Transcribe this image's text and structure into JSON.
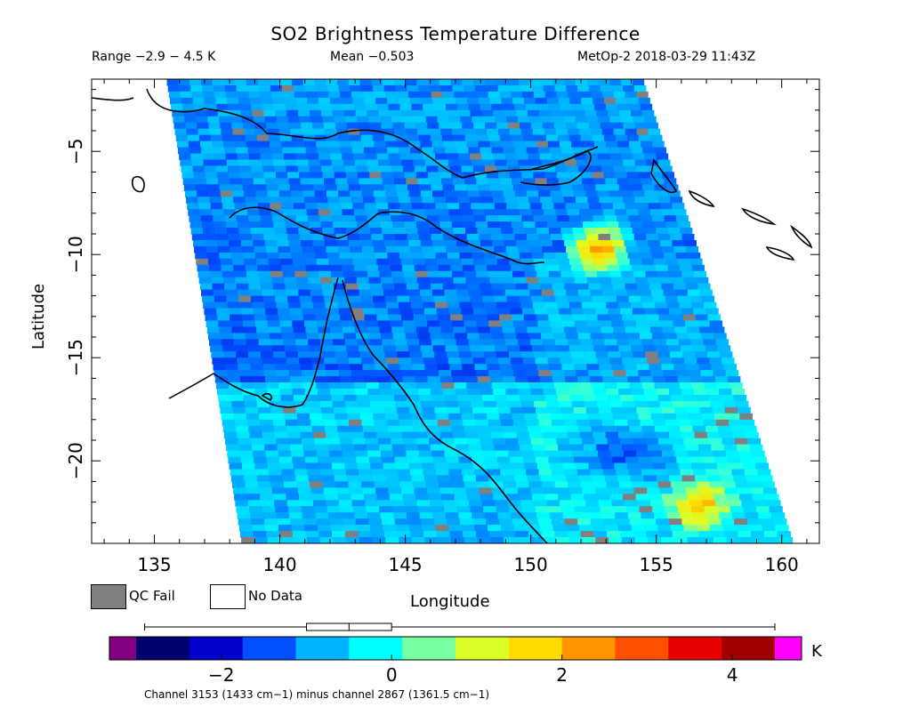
{
  "header": {
    "title": "SO2 Brightness Temperature Difference",
    "range_text": "Range −2.9 − 4.5 K",
    "mean_text": "Mean −0.503",
    "satellite_text": "MetOp-2 2018-03-29 11:43Z"
  },
  "legend": {
    "qc_fail_label": "QC Fail",
    "no_data_label": "No Data",
    "qc_fail_color": "#808080",
    "no_data_color": "#ffffff"
  },
  "colorbar": {
    "unit": "K",
    "ticks": [
      -2,
      0,
      2,
      4
    ],
    "tick_labels": [
      "−2",
      "0",
      "2",
      "4"
    ],
    "range": [
      -3,
      4.5
    ],
    "colors": [
      "#00006e",
      "#0000c8",
      "#0050ff",
      "#00b4ff",
      "#00ffff",
      "#78ffa0",
      "#dcff28",
      "#ffdc00",
      "#ff9600",
      "#ff5000",
      "#e60000",
      "#a00000"
    ],
    "under_color": "#800080",
    "over_color": "#ff00ff",
    "boxplot": {
      "min": -2.9,
      "q1": -1.0,
      "median": -0.5,
      "q3": 0.0,
      "max": 4.5
    }
  },
  "footnote": "Channel 3153 (1433 cm−1) minus channel 2867 (1361.5 cm−1)",
  "chart_data": {
    "type": "heatmap",
    "title": "SO2 Brightness Temperature Difference",
    "xlabel": "Longitude",
    "ylabel": "Latitude",
    "xlim": [
      132.5,
      161.5
    ],
    "ylim": [
      -24,
      -1.5
    ],
    "x_ticks": [
      135,
      140,
      145,
      150,
      155,
      160
    ],
    "y_ticks": [
      -5,
      -10,
      -15,
      -20
    ],
    "units": "K",
    "value_range": [
      -2.9,
      4.5
    ],
    "mean": -0.503,
    "hotspots": [
      {
        "lon": 152.5,
        "lat": -9.5,
        "value": 3.5
      },
      {
        "lon": 156.5,
        "lat": -22,
        "value": 2.2
      }
    ],
    "swath_edges": {
      "west": [
        [
          135.5,
          -1.5
        ],
        [
          138.5,
          -24
        ]
      ],
      "east": [
        [
          154.5,
          -1.5
        ],
        [
          160.5,
          -24
        ]
      ]
    }
  }
}
